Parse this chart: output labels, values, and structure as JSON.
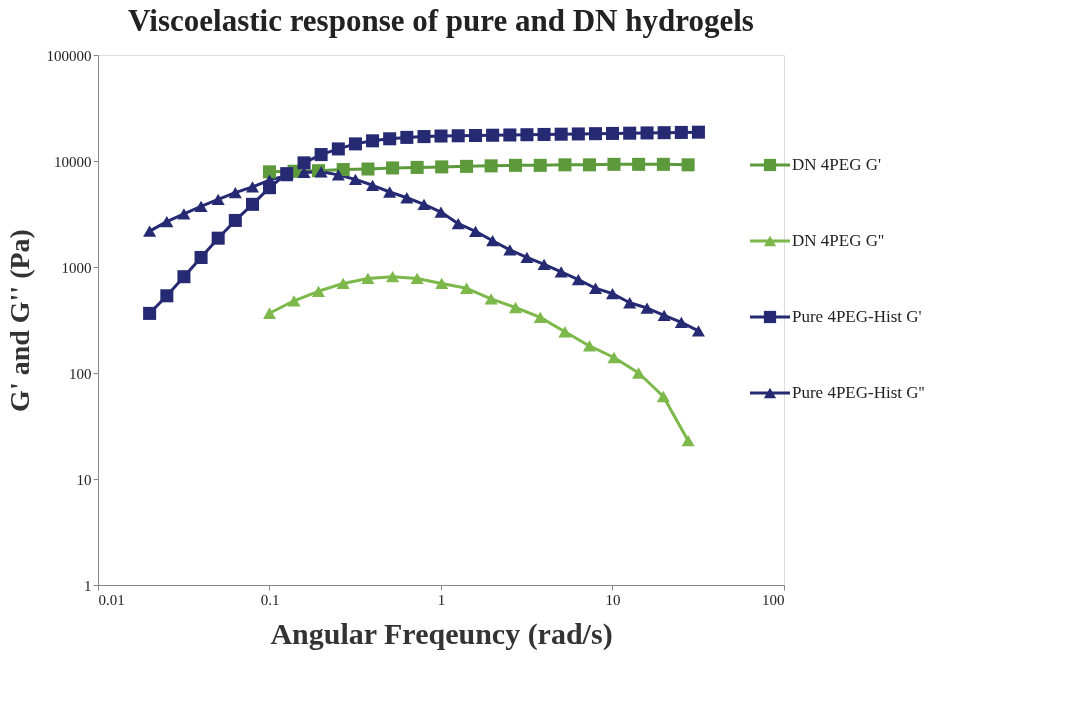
{
  "chart_data": {
    "type": "line",
    "title": "Viscoelastic response of pure and DN hydrogels",
    "xlabel": "Angular Freqeuncy (rad/s)",
    "ylabel": "G' and G'' (Pa)",
    "log": "xy",
    "xlim": [
      0.01,
      100
    ],
    "ylim": [
      1,
      100000
    ],
    "xticks": [
      0.01,
      0.1,
      1,
      10,
      100
    ],
    "yticks": [
      1,
      10,
      100,
      1000,
      10000,
      100000
    ],
    "grid": false,
    "legend": "right",
    "line_style": "solid",
    "series": [
      {
        "name": "DN 4PEG G'",
        "color": "#5c9a3c",
        "marker": "square",
        "x": [
          0.1,
          0.139,
          0.193,
          0.269,
          0.375,
          0.522,
          0.726,
          1.01,
          1.41,
          1.96,
          2.72,
          3.79,
          5.28,
          7.34,
          10.2,
          14.2,
          19.8,
          27.6
        ],
        "values": [
          7900,
          8000,
          8100,
          8300,
          8400,
          8600,
          8700,
          8800,
          8900,
          9000,
          9100,
          9100,
          9200,
          9200,
          9300,
          9300,
          9300,
          9200
        ]
      },
      {
        "name": "DN 4PEG G''",
        "color": "#7cb84a",
        "marker": "triangle",
        "x": [
          0.1,
          0.139,
          0.193,
          0.269,
          0.375,
          0.522,
          0.726,
          1.01,
          1.41,
          1.96,
          2.72,
          3.79,
          5.28,
          7.34,
          10.2,
          14.2,
          19.8,
          27.6
        ],
        "values": [
          366,
          480,
          590,
          700,
          780,
          810,
          780,
          700,
          630,
          500,
          415,
          335,
          245,
          180,
          140,
          100,
          60,
          23
        ]
      },
      {
        "name": "Pure 4PEG-Hist G'",
        "color": "#262a73",
        "marker": "square",
        "x": [
          0.02,
          0.0252,
          0.0317,
          0.0399,
          0.0502,
          0.0632,
          0.0796,
          0.1,
          0.126,
          0.159,
          0.2,
          0.252,
          0.317,
          0.399,
          0.502,
          0.632,
          0.796,
          1.0,
          1.26,
          1.59,
          2.0,
          2.52,
          3.17,
          3.99,
          5.02,
          6.32,
          7.96,
          10,
          12.6,
          15.9,
          20,
          25.2,
          31.7
        ],
        "values": [
          365,
          535,
          810,
          1230,
          1870,
          2750,
          3900,
          5600,
          7600,
          9600,
          11500,
          13000,
          14500,
          15500,
          16200,
          16700,
          17000,
          17200,
          17300,
          17400,
          17500,
          17600,
          17700,
          17800,
          17900,
          18000,
          18100,
          18200,
          18300,
          18400,
          18500,
          18600,
          18700
        ]
      },
      {
        "name": "Pure 4PEG-Hist G''",
        "color": "#262a73",
        "marker": "triangle",
        "x": [
          0.02,
          0.0252,
          0.0317,
          0.0399,
          0.0502,
          0.0632,
          0.0796,
          0.1,
          0.126,
          0.159,
          0.2,
          0.252,
          0.317,
          0.399,
          0.502,
          0.632,
          0.796,
          1.0,
          1.26,
          1.59,
          2.0,
          2.52,
          3.17,
          3.99,
          5.02,
          6.32,
          7.96,
          10,
          12.6,
          15.9,
          20,
          25.2,
          31.7
        ],
        "values": [
          2180,
          2680,
          3170,
          3730,
          4340,
          5030,
          5700,
          6600,
          7300,
          7800,
          7900,
          7400,
          6700,
          5900,
          5100,
          4500,
          3900,
          3300,
          2560,
          2170,
          1770,
          1450,
          1230,
          1060,
          900,
          760,
          630,
          560,
          460,
          410,
          350,
          300,
          250
        ]
      }
    ]
  }
}
